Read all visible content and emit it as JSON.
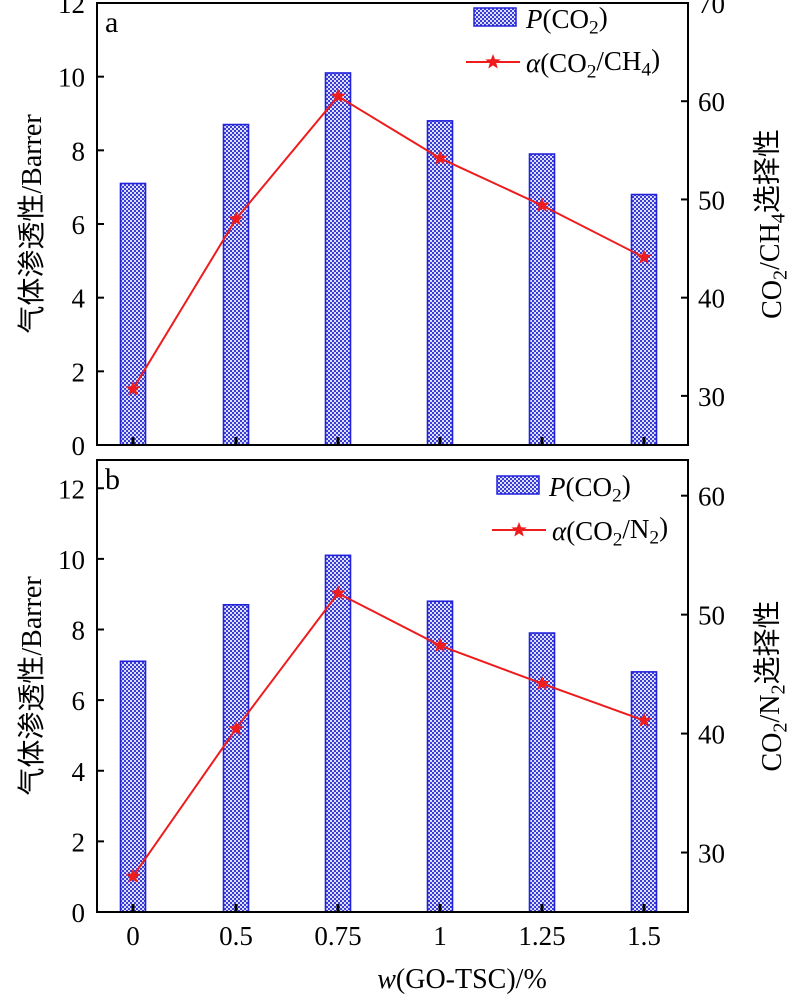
{
  "chart_data": [
    {
      "type": "bar",
      "panel_label": "a",
      "categories": [
        "0",
        "0.5",
        "0.75",
        "1",
        "1.25",
        "1.5"
      ],
      "series": [
        {
          "name": "P(CO2)",
          "name_parts": [
            "P",
            "(CO",
            "2",
            ")"
          ],
          "axis": "left",
          "kind": "bar",
          "values": [
            7.1,
            8.7,
            10.1,
            8.8,
            7.9,
            6.8
          ]
        },
        {
          "name": "α(CO2/CH4)",
          "name_parts": [
            "α",
            "(CO",
            "2",
            "/CH",
            "4",
            ")"
          ],
          "axis": "right",
          "kind": "line",
          "values": [
            30.7,
            48.0,
            60.5,
            54.2,
            49.4,
            44.1
          ]
        }
      ],
      "ylabel": "气体渗透性/Barrer",
      "y2label_parts": [
        "CO",
        "2",
        "/CH",
        "4",
        "选择性"
      ],
      "y2label": "CO2/CH4选择性",
      "ylim": [
        0,
        12
      ],
      "y2lim": [
        25,
        70
      ],
      "yticks": [
        "0",
        "2",
        "4",
        "6",
        "8",
        "10",
        "12"
      ],
      "y2ticks": [
        "30",
        "40",
        "50",
        "60",
        "70"
      ],
      "legend_position": "top-right"
    },
    {
      "type": "bar",
      "panel_label": "b",
      "categories": [
        "0",
        "0.5",
        "0.75",
        "1",
        "1.25",
        "1.5"
      ],
      "series": [
        {
          "name": "P(CO2)",
          "name_parts": [
            "P",
            "(CO",
            "2",
            ")"
          ],
          "axis": "left",
          "kind": "bar",
          "values": [
            7.1,
            8.7,
            10.1,
            8.8,
            7.9,
            6.8
          ]
        },
        {
          "name": "α(CO2/N2)",
          "name_parts": [
            "α",
            "(CO",
            "2",
            "/N",
            "2",
            ")"
          ],
          "axis": "right",
          "kind": "line",
          "values": [
            28.0,
            40.4,
            51.8,
            47.4,
            44.2,
            41.1
          ]
        }
      ],
      "ylabel": "气体渗透性/Barrer",
      "y2label_parts": [
        "CO",
        "2",
        "/N",
        "2",
        "选择性"
      ],
      "y2label": "CO2/N2选择性",
      "ylim": [
        0,
        12.8
      ],
      "y2lim": [
        25,
        63
      ],
      "yticks": [
        "0",
        "2",
        "4",
        "6",
        "8",
        "10",
        "12"
      ],
      "y2ticks": [
        "30",
        "40",
        "50",
        "60"
      ],
      "legend_position": "top-right"
    }
  ],
  "xlabel_parts": [
    "w",
    "(GO-TSC)/%"
  ],
  "xlabel": "w(GO-TSC)/%",
  "colors": {
    "bar_fill": "#c8ccf5",
    "bar_edge": "#2222dd",
    "bar_hatch": "#3b3bd6",
    "line": "#ee1c1c",
    "marker": "#ee1c1c",
    "axis": "#000000"
  }
}
